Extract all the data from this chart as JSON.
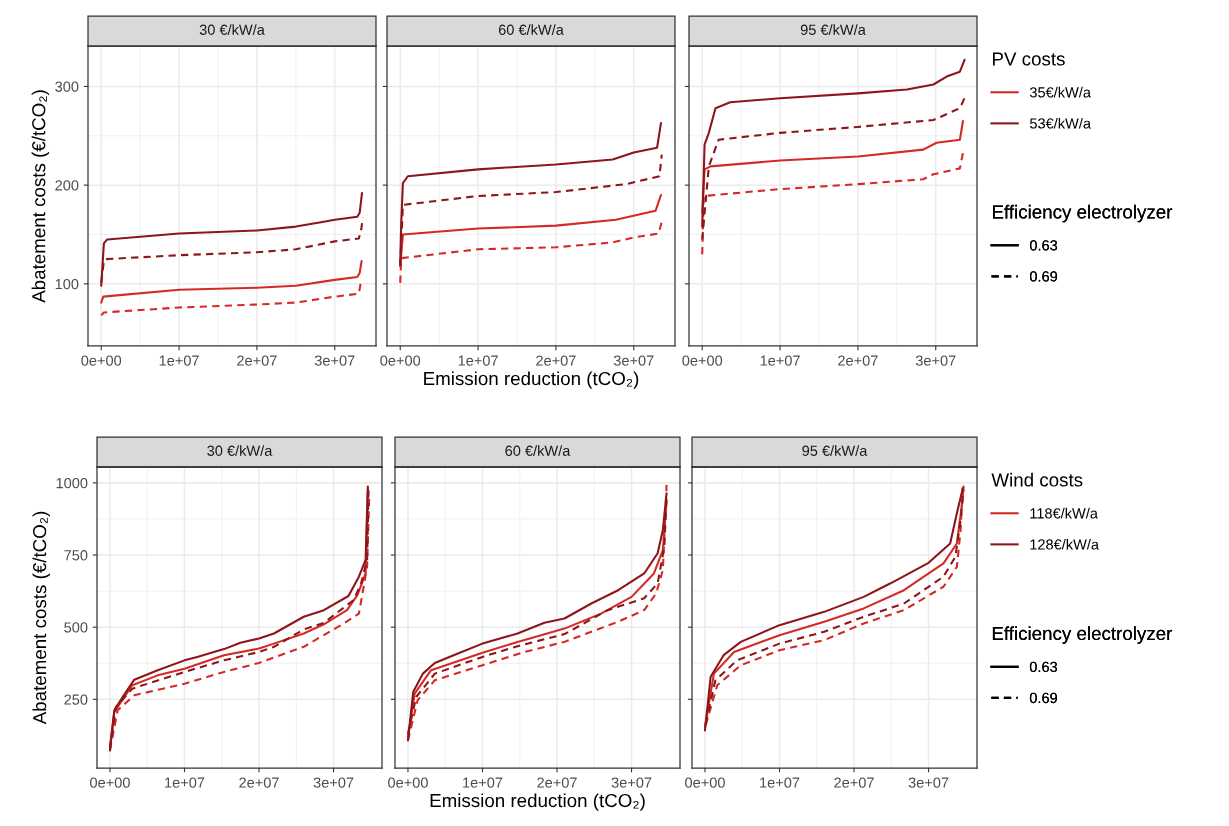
{
  "chart_data": [
    {
      "type": "line",
      "title": "30 €/kW/a",
      "ylabel": "Abatement costs (€/tCO₂)",
      "xlim": [
        -1700000.0,
        35300000.0
      ],
      "xticks": [
        {
          "value": 0,
          "label": "0e+00"
        },
        {
          "value": 10000000.0,
          "label": "1e+07"
        },
        {
          "value": 20000000.0,
          "label": "2e+07"
        },
        {
          "value": 30000000.0,
          "label": "3e+07"
        }
      ],
      "ylim": [
        37,
        341
      ],
      "yticks": [
        100,
        200,
        300
      ],
      "grid": true,
      "series": [
        {
          "color": "#d42a26",
          "line_style": "solid",
          "x": [
            0,
            260000.0,
            10000000.0,
            20000000.0,
            25000000.0,
            30000000.0,
            32900000.0,
            33200000.0,
            33450000.0
          ],
          "values": [
            81,
            87,
            94,
            96,
            98,
            104,
            107,
            111,
            123
          ]
        },
        {
          "color": "#d42a26",
          "line_style": "dashed",
          "x": [
            0,
            340000.0,
            10000000.0,
            20000000.0,
            25000000.0,
            30000000.0,
            33100000.0,
            33400000.0
          ],
          "values": [
            68,
            71,
            76,
            79,
            81,
            87,
            90,
            104
          ]
        },
        {
          "color": "#8c1619",
          "line_style": "solid",
          "x": [
            0,
            340000.0,
            770000.0,
            10000000.0,
            20000000.0,
            25000000.0,
            28600000.0,
            30000000.0,
            32900000.0,
            33200000.0,
            33500000.0
          ],
          "values": [
            98,
            141,
            145,
            151,
            154,
            158,
            163,
            165,
            168,
            172,
            192
          ]
        },
        {
          "color": "#8c1619",
          "line_style": "dashed",
          "x": [
            0,
            340000.0,
            550000.0,
            10000000.0,
            20000000.0,
            25000000.0,
            30000000.0,
            33100000.0,
            33400000.0,
            33600000.0
          ],
          "values": [
            101,
            123,
            125,
            129,
            132,
            135,
            143,
            146,
            155,
            167
          ]
        }
      ]
    },
    {
      "type": "line",
      "title": "60 €/kW/a",
      "xlabel": "Emission reduction (tCO₂)",
      "xlim": [
        -1700000.0,
        35300000.0
      ],
      "xticks": [
        {
          "value": 0,
          "label": "0e+00"
        },
        {
          "value": 10000000.0,
          "label": "1e+07"
        },
        {
          "value": 20000000.0,
          "label": "2e+07"
        },
        {
          "value": 30000000.0,
          "label": "3e+07"
        }
      ],
      "ylim": [
        37,
        341
      ],
      "yticks": [
        100,
        200,
        300
      ],
      "grid": true,
      "tick_labels": "x",
      "series": [
        {
          "color": "#d42a26",
          "line_style": "solid",
          "x": [
            0,
            340000.0,
            10000000.0,
            20000000.0,
            27700000.0,
            32800000.0,
            33500000.0
          ],
          "values": [
            118,
            150,
            156,
            159,
            165,
            174,
            190
          ]
        },
        {
          "color": "#d42a26",
          "line_style": "dashed",
          "x": [
            0,
            130000.0,
            10000000.0,
            20000000.0,
            27300000.0,
            30000000.0,
            33200000.0,
            33600000.0
          ],
          "values": [
            101,
            126,
            135,
            137,
            142,
            147,
            151,
            163
          ]
        },
        {
          "color": "#8c1619",
          "line_style": "solid",
          "x": [
            0,
            130000.0,
            340000.0,
            980000.0,
            10000000.0,
            20000000.0,
            27300000.0,
            30000000.0,
            33000000.0,
            33500000.0
          ],
          "values": [
            121,
            162,
            202,
            209,
            216,
            221,
            226,
            233,
            238,
            263
          ]
        },
        {
          "color": "#8c1619",
          "line_style": "dashed",
          "x": [
            0,
            340000.0,
            10000000.0,
            20000000.0,
            29000000.0,
            33300000.0,
            33600000.0
          ],
          "values": [
            118,
            180,
            189,
            193,
            201,
            209,
            231
          ]
        }
      ]
    },
    {
      "type": "line",
      "title": "95 €/kW/a",
      "xlim": [
        -1700000.0,
        35300000.0
      ],
      "xticks": [
        {
          "value": 0,
          "label": "0e+00"
        },
        {
          "value": 10000000.0,
          "label": "1e+07"
        },
        {
          "value": 20000000.0,
          "label": "2e+07"
        },
        {
          "value": 30000000.0,
          "label": "3e+07"
        }
      ],
      "ylim": [
        37,
        341
      ],
      "yticks": [
        100,
        200,
        300
      ],
      "grid": true,
      "tick_labels": "x",
      "legend": "right",
      "legend_title": "PV costs",
      "annotations": [
        "Efficiency electrolyzer",
        "0.63",
        "0.69"
      ],
      "series": [
        {
          "name": "35€/kW/a",
          "color": "#d42a26",
          "line_style": "solid",
          "x": [
            0,
            300000.0,
            1070000.0,
            10000000.0,
            20000000.0,
            28400000.0,
            30100000.0,
            33100000.0,
            33500000.0
          ],
          "values": [
            172,
            216,
            219,
            225,
            229,
            236,
            243,
            246,
            265
          ]
        },
        {
          "color": "#d42a26",
          "line_style": "dashed",
          "x": [
            0,
            200000.0,
            10000000.0,
            20000000.0,
            28400000.0,
            29700000.0,
            33100000.0,
            33500000.0
          ],
          "values": [
            130,
            189,
            196,
            201,
            206,
            211,
            217,
            233
          ]
        },
        {
          "name": "53€/kW/a",
          "color": "#8c1619",
          "line_style": "solid",
          "x": [
            0,
            300000.0,
            850000.0,
            1700000.0,
            3600000.0,
            10000000.0,
            20000000.0,
            26300000.0,
            29700000.0,
            31400000.0,
            33100000.0,
            33700000.0
          ],
          "values": [
            158,
            241,
            253,
            278,
            284,
            288,
            293,
            297,
            302,
            310,
            315,
            327
          ]
        },
        {
          "color": "#8c1619",
          "line_style": "dashed",
          "x": [
            0,
            850000.0,
            2100000.0,
            10000000.0,
            20000000.0,
            29700000.0,
            33100000.0,
            33800000.0
          ],
          "values": [
            145,
            219,
            246,
            253,
            259,
            266,
            278,
            290
          ]
        }
      ]
    },
    {
      "type": "line",
      "title": "30 €/kW/a",
      "ylabel": "Abatement costs (€/tCO₂)",
      "xlim": [
        -1740000.0,
        36500000.0
      ],
      "xticks": [
        {
          "value": 0,
          "label": "0e+00"
        },
        {
          "value": 10000000.0,
          "label": "1e+07"
        },
        {
          "value": 20000000.0,
          "label": "2e+07"
        },
        {
          "value": 30000000.0,
          "label": "3e+07"
        }
      ],
      "ylim": [
        12,
        1055
      ],
      "yticks": [
        250,
        500,
        750,
        1000
      ],
      "grid": true,
      "series": [
        {
          "color": "#d42a26",
          "line_style": "solid",
          "x": [
            0,
            580000.0,
            3000000.0,
            6400000.0,
            10000000.0,
            15300000.0,
            20000000.0,
            22000000.0,
            26000000.0,
            28700000.0,
            31800000.0,
            33200000.0,
            34300000.0,
            34600000.0
          ],
          "values": [
            84,
            206,
            299,
            333,
            356,
            403,
            426,
            443,
            478,
            510,
            559,
            611,
            686,
            976
          ]
        },
        {
          "color": "#d42a26",
          "line_style": "dashed",
          "x": [
            0,
            1030000.0,
            3260000.0,
            10000000.0,
            15300000.0,
            20000000.0,
            26000000.0,
            31400000.0,
            33400000.0,
            33800000.0,
            34500000.0,
            34800000.0
          ],
          "values": [
            73,
            212,
            264,
            304,
            345,
            376,
            432,
            513,
            547,
            605,
            709,
            964
          ]
        },
        {
          "color": "#8c1619",
          "line_style": "solid",
          "x": [
            0,
            580000.0,
            1700000.0,
            3260000.0,
            6400000.0,
            10000000.0,
            11700000.0,
            15300000.0,
            17500000.0,
            20000000.0,
            22000000.0,
            26000000.0,
            28700000.0,
            32000000.0,
            33400000.0,
            34300000.0,
            34600000.0
          ],
          "values": [
            73,
            212,
            258,
            318,
            351,
            385,
            397,
            424,
            446,
            461,
            478,
            536,
            559,
            608,
            675,
            733,
            987
          ]
        },
        {
          "color": "#8c1619",
          "line_style": "dashed",
          "x": [
            0,
            800000.0,
            3000000.0,
            10000000.0,
            15300000.0,
            20000000.0,
            22000000.0,
            26000000.0,
            28700000.0,
            32700000.0,
            33700000.0,
            34500000.0,
            34700000.0
          ],
          "values": [
            79,
            223,
            287,
            345,
            385,
            414,
            432,
            492,
            515,
            594,
            652,
            733,
            981
          ]
        }
      ]
    },
    {
      "type": "line",
      "title": "60 €/kW/a",
      "xlabel": "Emission reduction (tCO₂)",
      "xlim": [
        -1740000.0,
        36500000.0
      ],
      "xticks": [
        {
          "value": 0,
          "label": "0e+00"
        },
        {
          "value": 10000000.0,
          "label": "1e+07"
        },
        {
          "value": 20000000.0,
          "label": "2e+07"
        },
        {
          "value": 30000000.0,
          "label": "3e+07"
        }
      ],
      "ylim": [
        12,
        1055
      ],
      "yticks": [
        250,
        500,
        750,
        1000
      ],
      "grid": true,
      "tick_labels": "x",
      "series": [
        {
          "color": "#d42a26",
          "line_style": "solid",
          "x": [
            0,
            900000.0,
            3100000.0,
            10000000.0,
            14700000.0,
            21000000.0,
            25900000.0,
            30000000.0,
            33000000.0,
            34200000.0,
            34700000.0
          ],
          "values": [
            119,
            270,
            351,
            411,
            449,
            495,
            547,
            605,
            686,
            767,
            941
          ]
        },
        {
          "color": "#d42a26",
          "line_style": "dashed",
          "x": [
            0,
            1300000.0,
            3600000.0,
            10000000.0,
            15600000.0,
            21000000.0,
            28200000.0,
            31700000.0,
            33300000.0,
            34200000.0,
            34700000.0
          ],
          "values": [
            108,
            247,
            316,
            368,
            414,
            449,
            519,
            559,
            617,
            698,
            993
          ]
        },
        {
          "color": "#8c1619",
          "line_style": "solid",
          "x": [
            0,
            700000.0,
            2000000.0,
            3600000.0,
            6700000.0,
            10000000.0,
            14700000.0,
            18300000.0,
            21000000.0,
            24600000.0,
            28200000.0,
            31700000.0,
            33500000.0,
            34200000.0,
            34700000.0
          ],
          "values": [
            108,
            275,
            339,
            376,
            409,
            443,
            478,
            515,
            530,
            582,
            628,
            686,
            756,
            837,
            964
          ]
        },
        {
          "color": "#8c1619",
          "line_style": "dashed",
          "x": [
            0,
            1100000.0,
            3600000.0,
            10000000.0,
            14700000.0,
            21000000.0,
            26800000.0,
            31700000.0,
            33500000.0,
            34400000.0,
            34700000.0
          ],
          "values": [
            131,
            258,
            339,
            397,
            434,
            476,
            559,
            600,
            652,
            779,
            953
          ]
        }
      ]
    },
    {
      "type": "line",
      "title": "95 €/kW/a",
      "xlim": [
        -1740000.0,
        36500000.0
      ],
      "xticks": [
        {
          "value": 0,
          "label": "0e+00"
        },
        {
          "value": 10000000.0,
          "label": "1e+07"
        },
        {
          "value": 20000000.0,
          "label": "2e+07"
        },
        {
          "value": 30000000.0,
          "label": "3e+07"
        }
      ],
      "ylim": [
        12,
        1055
      ],
      "yticks": [
        250,
        500,
        750,
        1000
      ],
      "grid": true,
      "tick_labels": "x",
      "legend": "right",
      "legend_title": "Wind costs",
      "annotations": [
        "Efficiency electrolyzer",
        "0.63",
        "0.69"
      ],
      "series": [
        {
          "name": "118€/kW/a",
          "color": "#d42a26",
          "line_style": "solid",
          "x": [
            0,
            1200000.0,
            3900000.0,
            10000000.0,
            16000000.0,
            21300000.0,
            26700000.0,
            32000000.0,
            33800000.0,
            34500000.0,
            34700000.0
          ],
          "values": [
            154,
            339,
            414,
            472,
            519,
            565,
            628,
            721,
            790,
            929,
            987
          ]
        },
        {
          "color": "#d42a26",
          "line_style": "dashed",
          "x": [
            100000.0,
            1650000.0,
            4800000.0,
            10000000.0,
            16000000.0,
            21300000.0,
            26700000.0,
            32000000.0,
            33800000.0,
            34300000.0,
            34600000.0
          ],
          "values": [
            160,
            299,
            368,
            420,
            455,
            513,
            559,
            640,
            709,
            837,
            993
          ]
        },
        {
          "name": "128€/kW/a",
          "color": "#8c1619",
          "line_style": "solid",
          "x": [
            0,
            760000.0,
            2500000.0,
            4800000.0,
            10000000.0,
            16000000.0,
            21300000.0,
            24900000.0,
            30000000.0,
            32900000.0,
            33800000.0,
            34600000.0
          ],
          "values": [
            142,
            328,
            403,
            449,
            507,
            553,
            605,
            652,
            723,
            790,
            895,
            981
          ]
        },
        {
          "color": "#8c1619",
          "line_style": "dashed",
          "x": [
            100000.0,
            1400000.0,
            4300000.0,
            10000000.0,
            16000000.0,
            21300000.0,
            26700000.0,
            32000000.0,
            33600000.0,
            34300000.0,
            34700000.0
          ],
          "values": [
            166,
            316,
            385,
            443,
            484,
            536,
            582,
            675,
            744,
            871,
            976
          ]
        }
      ]
    }
  ]
}
